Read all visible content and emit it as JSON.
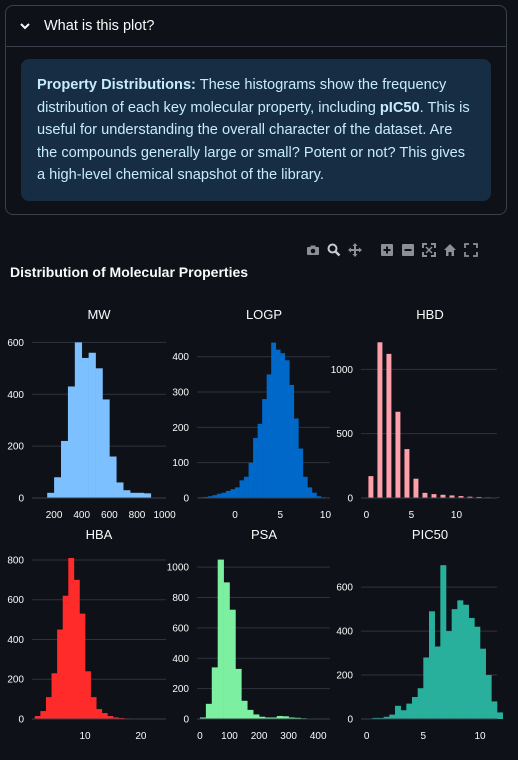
{
  "expander": {
    "header": "What is this plot?",
    "bold_lead": "Property Distributions:",
    "text_1": " These histograms show the frequency distribution of each key molecular property, including ",
    "bold_mid": "pIC50",
    "text_2": ". This is useful for understanding the overall character of the dataset. Are the compounds generally large or small? Potent or not? This gives a high-level chemical snapshot of the library."
  },
  "modebar": {
    "icons": [
      "camera-icon",
      "zoom-icon",
      "pan-icon",
      "zoom-in-icon",
      "zoom-out-icon",
      "autoscale-icon",
      "home-icon",
      "fullscreen-icon"
    ]
  },
  "chart_title": "Distribution of Molecular Properties",
  "chart_data": [
    {
      "type": "bar",
      "title": "MW",
      "color": "#7cc0ff",
      "bin_start": 50,
      "bin_width": 50,
      "values": [
        0,
        0,
        20,
        80,
        220,
        430,
        600,
        540,
        560,
        500,
        380,
        160,
        60,
        30,
        20,
        20,
        18,
        0
      ],
      "xlim": [
        40,
        1010
      ],
      "ylim": [
        0,
        640
      ],
      "xticks": [
        200,
        400,
        600,
        800,
        1000
      ],
      "yticks": [
        0,
        200,
        400,
        600
      ]
    },
    {
      "type": "bar",
      "title": "LOGP",
      "color": "#0068c9",
      "bin_start": -4,
      "bin_width": 0.5,
      "values": [
        2,
        3,
        5,
        8,
        12,
        15,
        20,
        25,
        30,
        50,
        60,
        100,
        170,
        210,
        280,
        350,
        440,
        420,
        410,
        390,
        320,
        225,
        140,
        60,
        30,
        15,
        5,
        2
      ],
      "xlim": [
        -4.2,
        10.5
      ],
      "ylim": [
        0,
        470
      ],
      "xticks": [
        0,
        5,
        10
      ],
      "yticks": [
        0,
        100,
        200,
        300,
        400
      ]
    },
    {
      "type": "bar",
      "title": "HBD",
      "color": "#ff9fa9",
      "bin_start": 0,
      "bin_width": 1,
      "values": [
        170,
        1210,
        1120,
        670,
        380,
        150,
        40,
        30,
        25,
        20,
        15,
        10,
        8,
        5,
        2
      ],
      "xlim": [
        -0.6,
        14.5
      ],
      "ylim": [
        0,
        1290
      ],
      "xticks": [
        0,
        5,
        10
      ],
      "yticks": [
        0,
        500,
        1000
      ]
    },
    {
      "type": "bar",
      "title": "HBA",
      "color": "#ff2b2b",
      "bin_start": 1,
      "bin_width": 1,
      "values": [
        15,
        40,
        110,
        230,
        450,
        620,
        810,
        700,
        530,
        240,
        110,
        50,
        30,
        15,
        8,
        5,
        3,
        2,
        1,
        1,
        0,
        0,
        1
      ],
      "xlim": [
        0.5,
        24.5
      ],
      "ylim": [
        0,
        840
      ],
      "xticks": [
        10,
        20
      ],
      "yticks": [
        0,
        200,
        400,
        600,
        800
      ]
    },
    {
      "type": "bar",
      "title": "PSA",
      "color": "#7defa1",
      "bin_start": 0,
      "bin_width": 20,
      "values": [
        10,
        100,
        340,
        1050,
        900,
        720,
        330,
        120,
        60,
        30,
        15,
        10,
        10,
        20,
        18,
        10,
        8,
        5,
        3,
        2,
        1,
        1
      ],
      "xlim": [
        -10,
        440
      ],
      "ylim": [
        0,
        1100
      ],
      "xticks": [
        0,
        100,
        200,
        300,
        400
      ],
      "yticks": [
        0,
        200,
        400,
        600,
        800,
        1000
      ]
    },
    {
      "type": "bar",
      "title": "PIC50",
      "color": "#29b09d",
      "bin_start": 0,
      "bin_width": 0.5,
      "values": [
        0,
        5,
        5,
        10,
        20,
        60,
        40,
        70,
        100,
        140,
        280,
        490,
        330,
        700,
        400,
        500,
        540,
        520,
        460,
        420,
        320,
        200,
        80,
        30
      ],
      "xlim": [
        -0.5,
        11.5
      ],
      "ylim": [
        0,
        760
      ],
      "xticks": [
        0,
        5,
        10
      ],
      "yticks": [
        0,
        200,
        400,
        600
      ]
    }
  ]
}
